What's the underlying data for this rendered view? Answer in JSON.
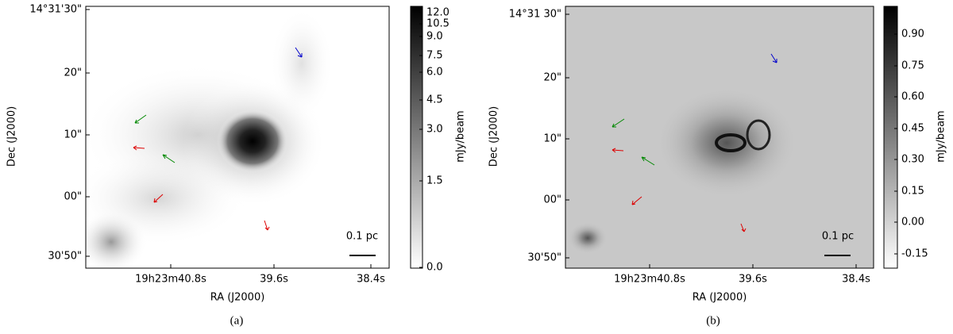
{
  "panels": [
    {
      "label": "(a)",
      "y_ticks": [
        "14°31'30\"",
        "20\"",
        "10\"",
        "00\"",
        "30'50\""
      ],
      "x_ticks": [
        "19h23m40.8s",
        "39.6s",
        "38.4s"
      ],
      "x_label": "RA (J2000)",
      "y_label": "Dec (J2000)",
      "scale_bar": "0.1 pc",
      "colorbar": {
        "label": "mJy/beam",
        "ticks": [
          "12.0",
          "10.5",
          "9.0",
          "7.5",
          "6.0",
          "4.5",
          "3.0",
          "1.5",
          "0.0"
        ]
      }
    },
    {
      "label": "(b)",
      "y_ticks": [
        "14°31 30\"",
        "20\"",
        "10\"",
        "00\"",
        "30'50\""
      ],
      "x_ticks": [
        "19h23m40.8s",
        "39.6s",
        "38.4s"
      ],
      "x_label": "RA (J2000)",
      "y_label": "Dec (J2000)",
      "scale_bar": "0.1 pc",
      "colorbar": {
        "label": "mJy/beam",
        "ticks": [
          "0.90",
          "0.75",
          "0.60",
          "0.45",
          "0.30",
          "0.15",
          "0.00",
          "-0.15"
        ]
      }
    }
  ]
}
